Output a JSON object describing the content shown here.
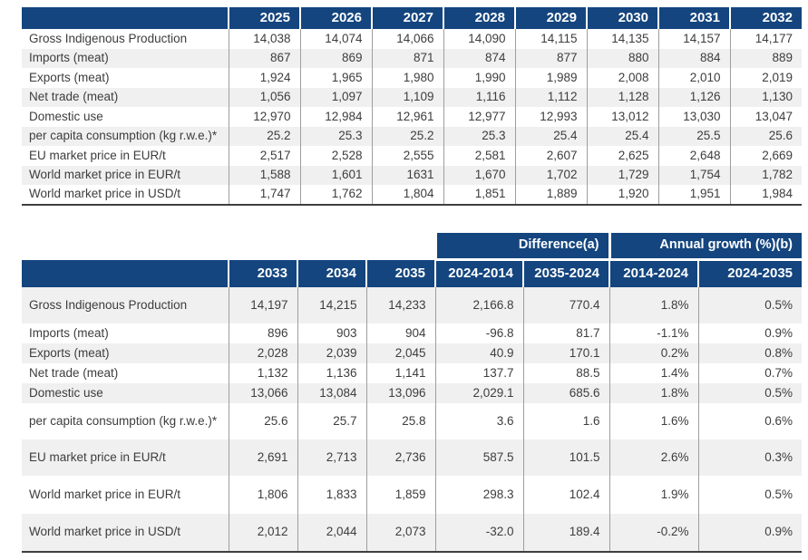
{
  "table1": {
    "columns": [
      "2025",
      "2026",
      "2027",
      "2028",
      "2029",
      "2030",
      "2031",
      "2032"
    ],
    "rows": [
      {
        "label": "Gross Indigenous Production",
        "values": [
          "14,038",
          "14,074",
          "14,066",
          "14,090",
          "14,115",
          "14,135",
          "14,157",
          "14,177"
        ]
      },
      {
        "label": "Imports (meat)",
        "values": [
          "867",
          "869",
          "871",
          "874",
          "877",
          "880",
          "884",
          "889"
        ]
      },
      {
        "label": "Exports (meat)",
        "values": [
          "1,924",
          "1,965",
          "1,980",
          "1,990",
          "1,989",
          "2,008",
          "2,010",
          "2,019"
        ]
      },
      {
        "label": "Net trade (meat)",
        "values": [
          "1,056",
          "1,097",
          "1,109",
          "1,116",
          "1,112",
          "1,128",
          "1,126",
          "1,130"
        ]
      },
      {
        "label": "Domestic use",
        "values": [
          "12,970",
          "12,984",
          "12,961",
          "12,977",
          "12,993",
          "13,012",
          "13,030",
          "13,047"
        ]
      },
      {
        "label": "per capita consumption (kg r.w.e.)*",
        "values": [
          "25.2",
          "25.3",
          "25.2",
          "25.3",
          "25.4",
          "25.4",
          "25.5",
          "25.6"
        ]
      },
      {
        "label": "EU market price in EUR/t",
        "values": [
          "2,517",
          "2,528",
          "2,555",
          "2,581",
          "2,607",
          "2,625",
          "2,648",
          "2,669"
        ]
      },
      {
        "label": "World market price in EUR/t",
        "values": [
          "1,588",
          "1,601",
          "1631",
          "1,670",
          "1,702",
          "1,729",
          "1,754",
          "1,782"
        ]
      },
      {
        "label": "World market price in USD/t",
        "values": [
          "1,747",
          "1,762",
          "1,804",
          "1,851",
          "1,889",
          "1,920",
          "1,951",
          "1,984"
        ]
      }
    ]
  },
  "table2": {
    "group_headers": {
      "difference": "Difference(a)",
      "annual_growth": "Annual growth (%)(b)"
    },
    "columns": [
      "2033",
      "2034",
      "2035",
      "2024-2014",
      "2035-2024",
      "2014-2024",
      "2024-2035"
    ],
    "rows": [
      {
        "label": "Gross Indigenous Production",
        "values": [
          "14,197",
          "14,215",
          "14,233",
          "2,166.8",
          "770.4",
          "1.8%",
          "0.5%"
        ]
      },
      {
        "label": "Imports (meat)",
        "values": [
          "896",
          "903",
          "904",
          "-96.8",
          "81.7",
          "-1.1%",
          "0.9%"
        ]
      },
      {
        "label": "Exports (meat)",
        "values": [
          "2,028",
          "2,039",
          "2,045",
          "40.9",
          "170.1",
          "0.2%",
          "0.8%"
        ]
      },
      {
        "label": "Net trade (meat)",
        "values": [
          "1,132",
          "1,136",
          "1,141",
          "137.7",
          "88.5",
          "1.4%",
          "0.7%"
        ]
      },
      {
        "label": "Domestic use",
        "values": [
          "13,066",
          "13,084",
          "13,096",
          "2,029.1",
          "685.6",
          "1.8%",
          "0.5%"
        ]
      },
      {
        "label": "per capita consumption (kg r.w.e.)*",
        "values": [
          "25.6",
          "25.7",
          "25.8",
          "3.6",
          "1.6",
          "1.6%",
          "0.6%"
        ]
      },
      {
        "label": "EU market price in EUR/t",
        "values": [
          "2,691",
          "2,713",
          "2,736",
          "587.5",
          "101.5",
          "2.6%",
          "0.3%"
        ]
      },
      {
        "label": "World market price in EUR/t",
        "values": [
          "1,806",
          "1,833",
          "1,859",
          "298.3",
          "102.4",
          "1.9%",
          "0.5%"
        ]
      },
      {
        "label": "World market price in USD/t",
        "values": [
          "2,012",
          "2,044",
          "2,073",
          "-32.0",
          "189.4",
          "-0.2%",
          "0.9%"
        ]
      }
    ]
  },
  "colors": {
    "header_navy": "#14457E",
    "row_stripe": "#F0F0F0",
    "text": "#3D3D3D"
  }
}
